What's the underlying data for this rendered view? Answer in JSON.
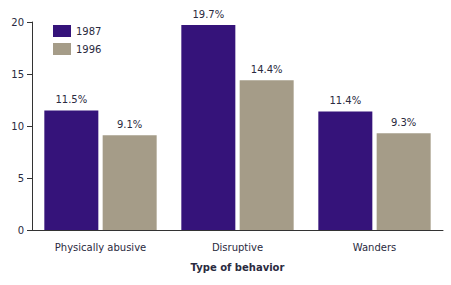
{
  "chart_data": {
    "type": "bar",
    "categories": [
      "Physically abusive",
      "Disruptive",
      "Wanders"
    ],
    "series": [
      {
        "name": "1987",
        "color": "#35137a",
        "values": [
          11.5,
          19.7,
          11.4
        ],
        "value_labels": [
          "11.5%",
          "19.7%",
          "11.4%"
        ]
      },
      {
        "name": "1996",
        "color": "#a59c88",
        "values": [
          9.1,
          14.4,
          9.3
        ],
        "value_labels": [
          "9.1%",
          "14.4%",
          "9.3%"
        ]
      }
    ],
    "x_label": "Type of behavior",
    "ylim": [
      0,
      20
    ],
    "yticks": [
      0,
      5,
      10,
      15,
      20
    ],
    "grid": false,
    "legend": "upper left",
    "data_labels": true
  }
}
